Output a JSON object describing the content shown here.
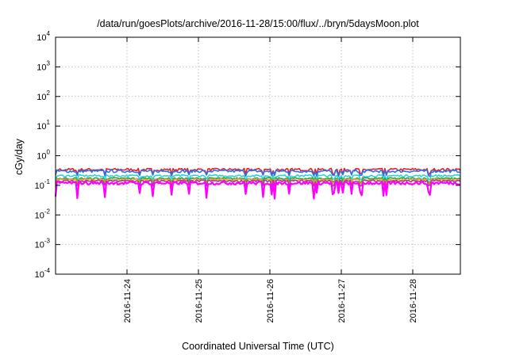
{
  "chart_data": {
    "type": "line",
    "title": "/data/run/goesPlots/archive/2016-11-28/15:00/flux/../bryn/5daysMoon.plot",
    "xlabel": "Coordinated Universal Time (UTC)",
    "ylabel": "cGy/day",
    "y_scale": "log",
    "ylim": [
      0.0001,
      10000
    ],
    "xlim": [
      "2016-11-23T00:00",
      "2016-11-28T16:00"
    ],
    "grid": true,
    "x_ticks": [
      "2016-11-24",
      "2016-11-25",
      "2016-11-26",
      "2016-11-27",
      "2016-11-28"
    ],
    "y_ticks": [
      {
        "base": "10",
        "exp": "-4",
        "value": 0.0001
      },
      {
        "base": "10",
        "exp": "-3",
        "value": 0.001
      },
      {
        "base": "10",
        "exp": "-2",
        "value": 0.01
      },
      {
        "base": "10",
        "exp": "-1",
        "value": 0.1
      },
      {
        "base": "10",
        "exp": "0",
        "value": 1
      },
      {
        "base": "10",
        "exp": "1",
        "value": 10
      },
      {
        "base": "10",
        "exp": "2",
        "value": 100
      },
      {
        "base": "10",
        "exp": "3",
        "value": 1000
      },
      {
        "base": "10",
        "exp": "4",
        "value": 10000
      }
    ],
    "series": [
      {
        "color": "#e0202a",
        "level": 0.34,
        "dip_to": 0.22,
        "noise": 0.1
      },
      {
        "color": "#2f6fe6",
        "level": 0.3,
        "dip_to": 0.2,
        "noise": 0.1
      },
      {
        "color": "#28d6cf",
        "level": 0.21,
        "dip_to": 0.15,
        "noise": 0.08
      },
      {
        "color": "#2e9e3a",
        "level": 0.17,
        "dip_to": 0.12,
        "noise": 0.07
      },
      {
        "color": "#f0a020",
        "level": 0.155,
        "dip_to": 0.11,
        "noise": 0.07
      },
      {
        "color": "#a040a0",
        "level": 0.14,
        "dip_to": 0.09,
        "noise": 0.08
      },
      {
        "color": "#ff00ff",
        "level": 0.12,
        "dip_to": 0.035,
        "noise": 0.12
      }
    ]
  }
}
